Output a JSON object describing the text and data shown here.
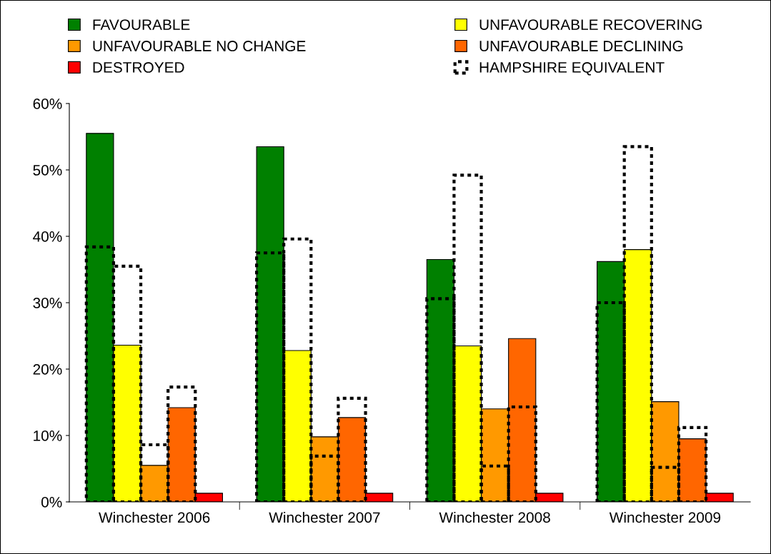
{
  "chart_data": {
    "type": "bar",
    "categories": [
      "Winchester 2006",
      "Winchester 2007",
      "Winchester 2008",
      "Winchester 2009"
    ],
    "series": [
      {
        "name": "FAVOURABLE",
        "color": "#008000",
        "values": [
          55.5,
          53.5,
          36.5,
          36.2
        ]
      },
      {
        "name": "UNFAVOURABLE RECOVERING",
        "color": "#ffff00",
        "values": [
          23.6,
          22.8,
          23.5,
          38.0
        ]
      },
      {
        "name": "UNFAVOURABLE NO CHANGE",
        "color": "#ff9900",
        "values": [
          5.5,
          9.8,
          14.0,
          15.1
        ]
      },
      {
        "name": "UNFAVOURABLE DECLINING",
        "color": "#ff6600",
        "values": [
          14.2,
          12.7,
          24.6,
          9.5
        ]
      },
      {
        "name": "DESTROYED",
        "color": "#ff0000",
        "values": [
          1.3,
          1.3,
          1.3,
          1.3
        ]
      },
      {
        "name": "HAMPSHIRE EQUIVALENT",
        "color": "#000000",
        "line_style": "dashed",
        "values": [
          38.4,
          37.5,
          30.6,
          30.0
        ]
      },
      {
        "color": "#000000",
        "line_style": "dashed",
        "values": [
          35.5,
          39.6,
          49.2,
          53.5
        ]
      },
      {
        "color": "#000000",
        "line_style": "dashed",
        "values": [
          8.6,
          6.9,
          5.4,
          5.2
        ]
      },
      {
        "color": "#000000",
        "line_style": "dashed",
        "values": [
          17.3,
          15.6,
          14.3,
          11.2
        ]
      }
    ],
    "ylim": [
      0,
      60
    ],
    "yticks": [
      {
        "value": 0,
        "label": "0%"
      },
      {
        "value": 10,
        "label": "10%"
      },
      {
        "value": 20,
        "label": "20%"
      },
      {
        "value": 30,
        "label": "30%"
      },
      {
        "value": 40,
        "label": "40%"
      },
      {
        "value": 50,
        "label": "50%"
      },
      {
        "value": 60,
        "label": "60%"
      }
    ],
    "grid": false,
    "legend": "top"
  }
}
